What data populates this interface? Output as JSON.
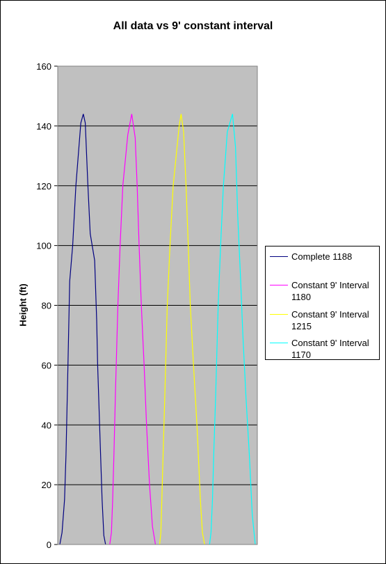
{
  "chart_data": {
    "type": "line",
    "title": "All data vs 9' constant interval",
    "xlabel": "",
    "ylabel": "Height (ft)",
    "ylim": [
      0,
      160
    ],
    "y_ticks": [
      "0",
      "20",
      "40",
      "60",
      "80",
      "100",
      "120",
      "140",
      "160"
    ],
    "grid": "horizontal major gridlines",
    "plot_background": "#c0c0c0",
    "legend_placement": "right",
    "series": [
      {
        "name": "Complete 1188",
        "color": "#000080",
        "points": [
          [
            -18.5,
            0
          ],
          [
            -17.6,
            4
          ],
          [
            -16.6,
            15
          ],
          [
            -16.0,
            30
          ],
          [
            -15.2,
            60
          ],
          [
            -14.5,
            88
          ],
          [
            -13.3,
            100
          ],
          [
            -12.0,
            120
          ],
          [
            -10.0,
            141
          ],
          [
            -9.0,
            144
          ],
          [
            -8.2,
            141
          ],
          [
            -7.2,
            121
          ],
          [
            -6.2,
            104
          ],
          [
            -4.4,
            95
          ],
          [
            -3.6,
            75
          ],
          [
            -3.2,
            60
          ],
          [
            -2.2,
            35
          ],
          [
            -1.4,
            15
          ],
          [
            -0.7,
            3
          ],
          [
            0.0,
            0
          ]
        ]
      },
      {
        "name": "Constant 9' Interval 1180",
        "color": "#ff00ff",
        "points": [
          [
            -18.5,
            0
          ],
          [
            -17.8,
            4
          ],
          [
            -17.3,
            15
          ],
          [
            -16.8,
            30
          ],
          [
            -16.2,
            50
          ],
          [
            -15.2,
            80
          ],
          [
            -14.3,
            100
          ],
          [
            -13.2,
            120
          ],
          [
            -11.2,
            137
          ],
          [
            -9.6,
            144
          ],
          [
            -8.2,
            136
          ],
          [
            -7.4,
            120
          ],
          [
            -6.6,
            100
          ],
          [
            -5.7,
            80
          ],
          [
            -4.6,
            60
          ],
          [
            -3.6,
            40
          ],
          [
            -2.4,
            20
          ],
          [
            -1.2,
            6
          ],
          [
            0.0,
            0
          ]
        ]
      },
      {
        "name": "Constant 9' Interval 1215",
        "color": "#ffff00",
        "points": [
          [
            -18.5,
            0
          ],
          [
            -18.0,
            4
          ],
          [
            -17.6,
            15
          ],
          [
            -17.1,
            30
          ],
          [
            -16.4,
            50
          ],
          [
            -15.4,
            80
          ],
          [
            -14.3,
            100
          ],
          [
            -13.0,
            120
          ],
          [
            -10.6,
            140
          ],
          [
            -9.8,
            144
          ],
          [
            -8.8,
            138
          ],
          [
            -7.8,
            120
          ],
          [
            -6.9,
            100
          ],
          [
            -6.1,
            80
          ],
          [
            -4.8,
            60
          ],
          [
            -3.4,
            40
          ],
          [
            -2.0,
            15
          ],
          [
            -1.2,
            4
          ],
          [
            -0.3,
            0
          ]
        ]
      },
      {
        "name": "Constant 9' Interval 1170",
        "color": "#00ffff",
        "points": [
          [
            -18.5,
            0
          ],
          [
            -17.9,
            4
          ],
          [
            -17.3,
            15
          ],
          [
            -16.8,
            30
          ],
          [
            -16.0,
            50
          ],
          [
            -15.0,
            80
          ],
          [
            -14.0,
            100
          ],
          [
            -12.9,
            120
          ],
          [
            -11.3,
            138
          ],
          [
            -9.2,
            144
          ],
          [
            -8.0,
            133
          ],
          [
            -7.1,
            110
          ],
          [
            -6.0,
            90
          ],
          [
            -5.0,
            70
          ],
          [
            -3.8,
            50
          ],
          [
            -2.4,
            30
          ],
          [
            -1.2,
            10
          ],
          [
            0.0,
            0
          ]
        ]
      }
    ],
    "legend": {
      "items": [
        {
          "line1": "Complete 1188",
          "line2": ""
        },
        {
          "line1": "Constant 9' Interval",
          "line2": "1180"
        },
        {
          "line1": "Constant 9' Interval",
          "line2": "1215"
        },
        {
          "line1": "Constant 9' Interval",
          "line2": "1170"
        }
      ]
    }
  }
}
